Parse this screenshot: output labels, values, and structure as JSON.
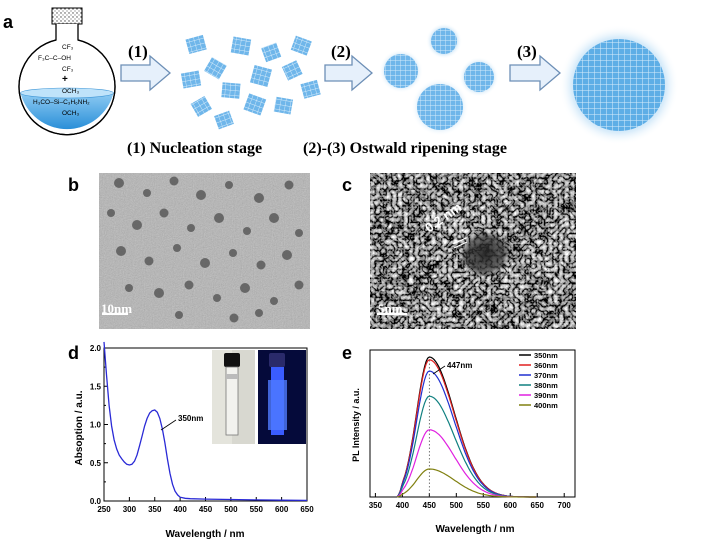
{
  "panels": {
    "a": "a",
    "b": "b",
    "c": "c",
    "d": "d",
    "e": "e"
  },
  "scheme": {
    "steps": [
      "(1)",
      "(2)",
      "(3)"
    ],
    "nucleation_label": "(1) Nucleation stage",
    "ripening_label": "(2)-(3) Ostwald ripening stage",
    "flask_lines": {
      "cf3_top": "CF₃",
      "alcohol": "F₃C–C–OH",
      "cf3_bottom": "CF₃",
      "plus": "+",
      "och3_top": "OCH₃",
      "silane": "H₃CO–Si–C₃H₆NH₂",
      "och3_bottom": "OCH₃"
    }
  },
  "tem_b": {
    "scale_label": "10nm"
  },
  "tem_c": {
    "scale_label": "5nm",
    "spacing_label": "0.2 nm"
  },
  "chart_d": {
    "type": "line",
    "xlabel": "Wavelength / nm",
    "ylabel": "Absoption / a.u.",
    "xlim": [
      250,
      650
    ],
    "ylim": [
      0.0,
      2.0
    ],
    "xticks": [
      250,
      300,
      350,
      400,
      450,
      500,
      550,
      600,
      650
    ],
    "yticks": [
      "0.0",
      "0.5",
      "1.0",
      "1.5",
      "2.0"
    ],
    "ytick_values": [
      0,
      0.5,
      1.0,
      1.5,
      2.0
    ],
    "minor_yticks": [
      0.25,
      0.75,
      1.25,
      1.75
    ],
    "annotation": "350nm",
    "series_color": "#2a2ad6",
    "points": [
      [
        250,
        2.08
      ],
      [
        255,
        1.65
      ],
      [
        260,
        1.25
      ],
      [
        265,
        0.98
      ],
      [
        270,
        0.8
      ],
      [
        275,
        0.68
      ],
      [
        280,
        0.6
      ],
      [
        285,
        0.55
      ],
      [
        290,
        0.51
      ],
      [
        295,
        0.48
      ],
      [
        300,
        0.47
      ],
      [
        305,
        0.48
      ],
      [
        310,
        0.52
      ],
      [
        315,
        0.6
      ],
      [
        320,
        0.72
      ],
      [
        325,
        0.85
      ],
      [
        330,
        0.98
      ],
      [
        335,
        1.08
      ],
      [
        340,
        1.15
      ],
      [
        345,
        1.18
      ],
      [
        350,
        1.19
      ],
      [
        355,
        1.16
      ],
      [
        360,
        1.08
      ],
      [
        365,
        0.94
      ],
      [
        370,
        0.76
      ],
      [
        375,
        0.55
      ],
      [
        380,
        0.36
      ],
      [
        385,
        0.22
      ],
      [
        390,
        0.13
      ],
      [
        395,
        0.08
      ],
      [
        400,
        0.05
      ],
      [
        410,
        0.035
      ],
      [
        420,
        0.03
      ],
      [
        450,
        0.025
      ],
      [
        500,
        0.02
      ],
      [
        550,
        0.015
      ],
      [
        600,
        0.01
      ],
      [
        650,
        0.008
      ]
    ]
  },
  "chart_e": {
    "type": "line",
    "xlabel": "Wavelength / nm",
    "ylabel": "PL Intensity / a.u.",
    "xlim": [
      340,
      720
    ],
    "ylim": [
      0,
      1.05
    ],
    "xticks": [
      350,
      400,
      450,
      500,
      550,
      600,
      650,
      700
    ],
    "annotation": "447nm",
    "legend_position": "top-right",
    "series": [
      {
        "name": "350nm",
        "color": "#000000",
        "peak": 1.0
      },
      {
        "name": "360nm",
        "color": "#e02020",
        "peak": 0.98
      },
      {
        "name": "370nm",
        "color": "#2030d0",
        "peak": 0.9
      },
      {
        "name": "380nm",
        "color": "#108080",
        "peak": 0.72
      },
      {
        "name": "390nm",
        "color": "#e020e0",
        "peak": 0.48
      },
      {
        "name": "400nm",
        "color": "#808010",
        "peak": 0.2
      }
    ],
    "peak_wavelength": 450
  }
}
